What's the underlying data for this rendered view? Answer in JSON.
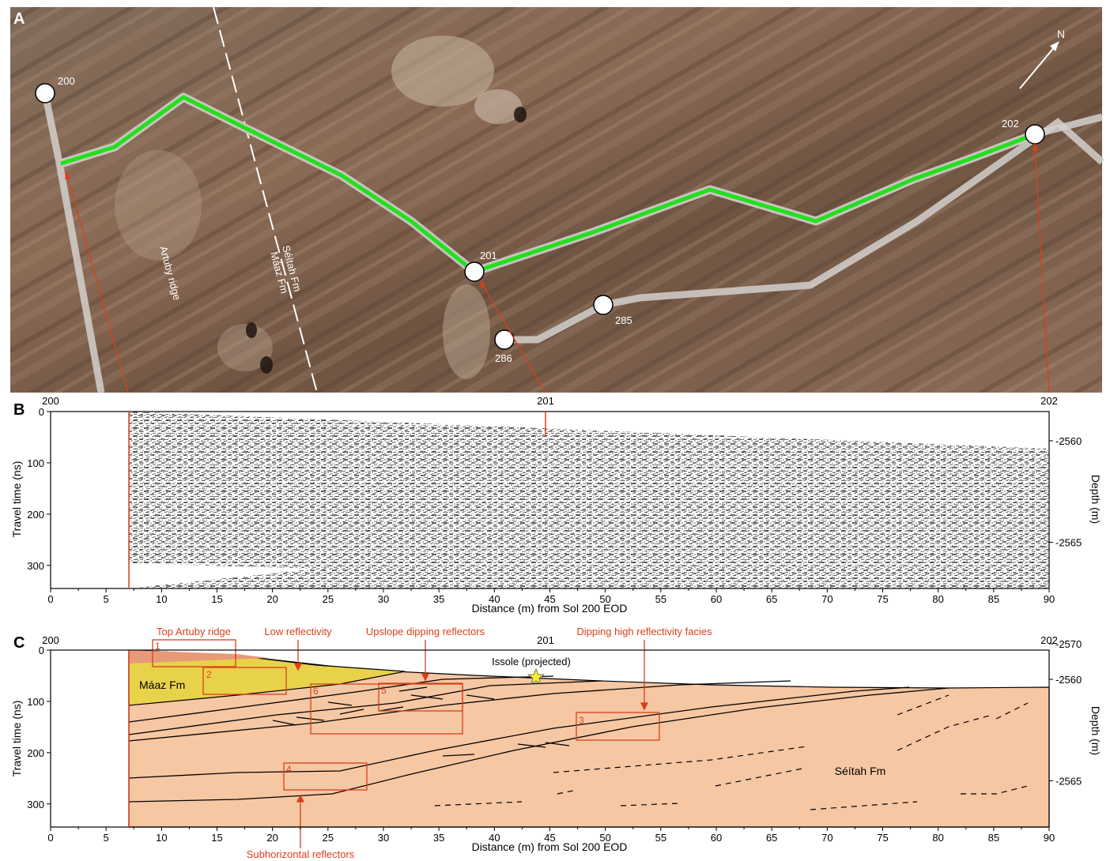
{
  "panels": {
    "a": {
      "letter": "A",
      "north_label": "N",
      "stations": {
        "s200": "200",
        "s201": "201",
        "s202": "202",
        "s285": "285",
        "s286": "286"
      },
      "ridge_label": "Artuby ridge",
      "contact_label_1": "Séítah Fm",
      "contact_label_2": "Máaz Fm"
    },
    "b": {
      "letter": "B",
      "top_marks": [
        "200",
        "201",
        "202"
      ],
      "ylabel": "Travel time (ns)",
      "ylabel_right": "Depth (m)",
      "xlabel": "Distance (m) from Sol 200 EOD"
    },
    "c": {
      "letter": "C",
      "top_marks": [
        "200",
        "201",
        "202"
      ],
      "ylabel": "Travel time (ns)",
      "ylabel_right": "Depth (m)",
      "xlabel": "Distance (m) from Sol 200 EOD",
      "annotations": {
        "top_artuby": "Top Artuby ridge",
        "low_refl": "Low reflectivity",
        "upslope": "Upslope dipping reflectors",
        "dipping_high": "Dipping high reflectivity facies",
        "subhorizontal": "Subhorizontal reflectors",
        "issole": "Issole (projected)",
        "maaz": "Máaz Fm",
        "seitah": "Séítah Fm"
      },
      "boxes": [
        "1",
        "2",
        "3",
        "4",
        "5",
        "6"
      ]
    }
  },
  "axes": {
    "x_ticks": [
      "0",
      "5",
      "10",
      "15",
      "20",
      "25",
      "30",
      "35",
      "40",
      "45",
      "50",
      "55",
      "60",
      "65",
      "70",
      "75",
      "80",
      "85",
      "90"
    ],
    "y_ticks": [
      "0",
      "100",
      "200",
      "300"
    ],
    "depth_ticks": [
      "-2560",
      "-2565",
      "-2570"
    ]
  },
  "colors": {
    "traverse": "#22e01e",
    "annotation": "#d8401c",
    "maaz_fill": "#e8d24a",
    "seitah_fill": "#f6c7a3",
    "artuby_fill": "#e89a78"
  }
}
